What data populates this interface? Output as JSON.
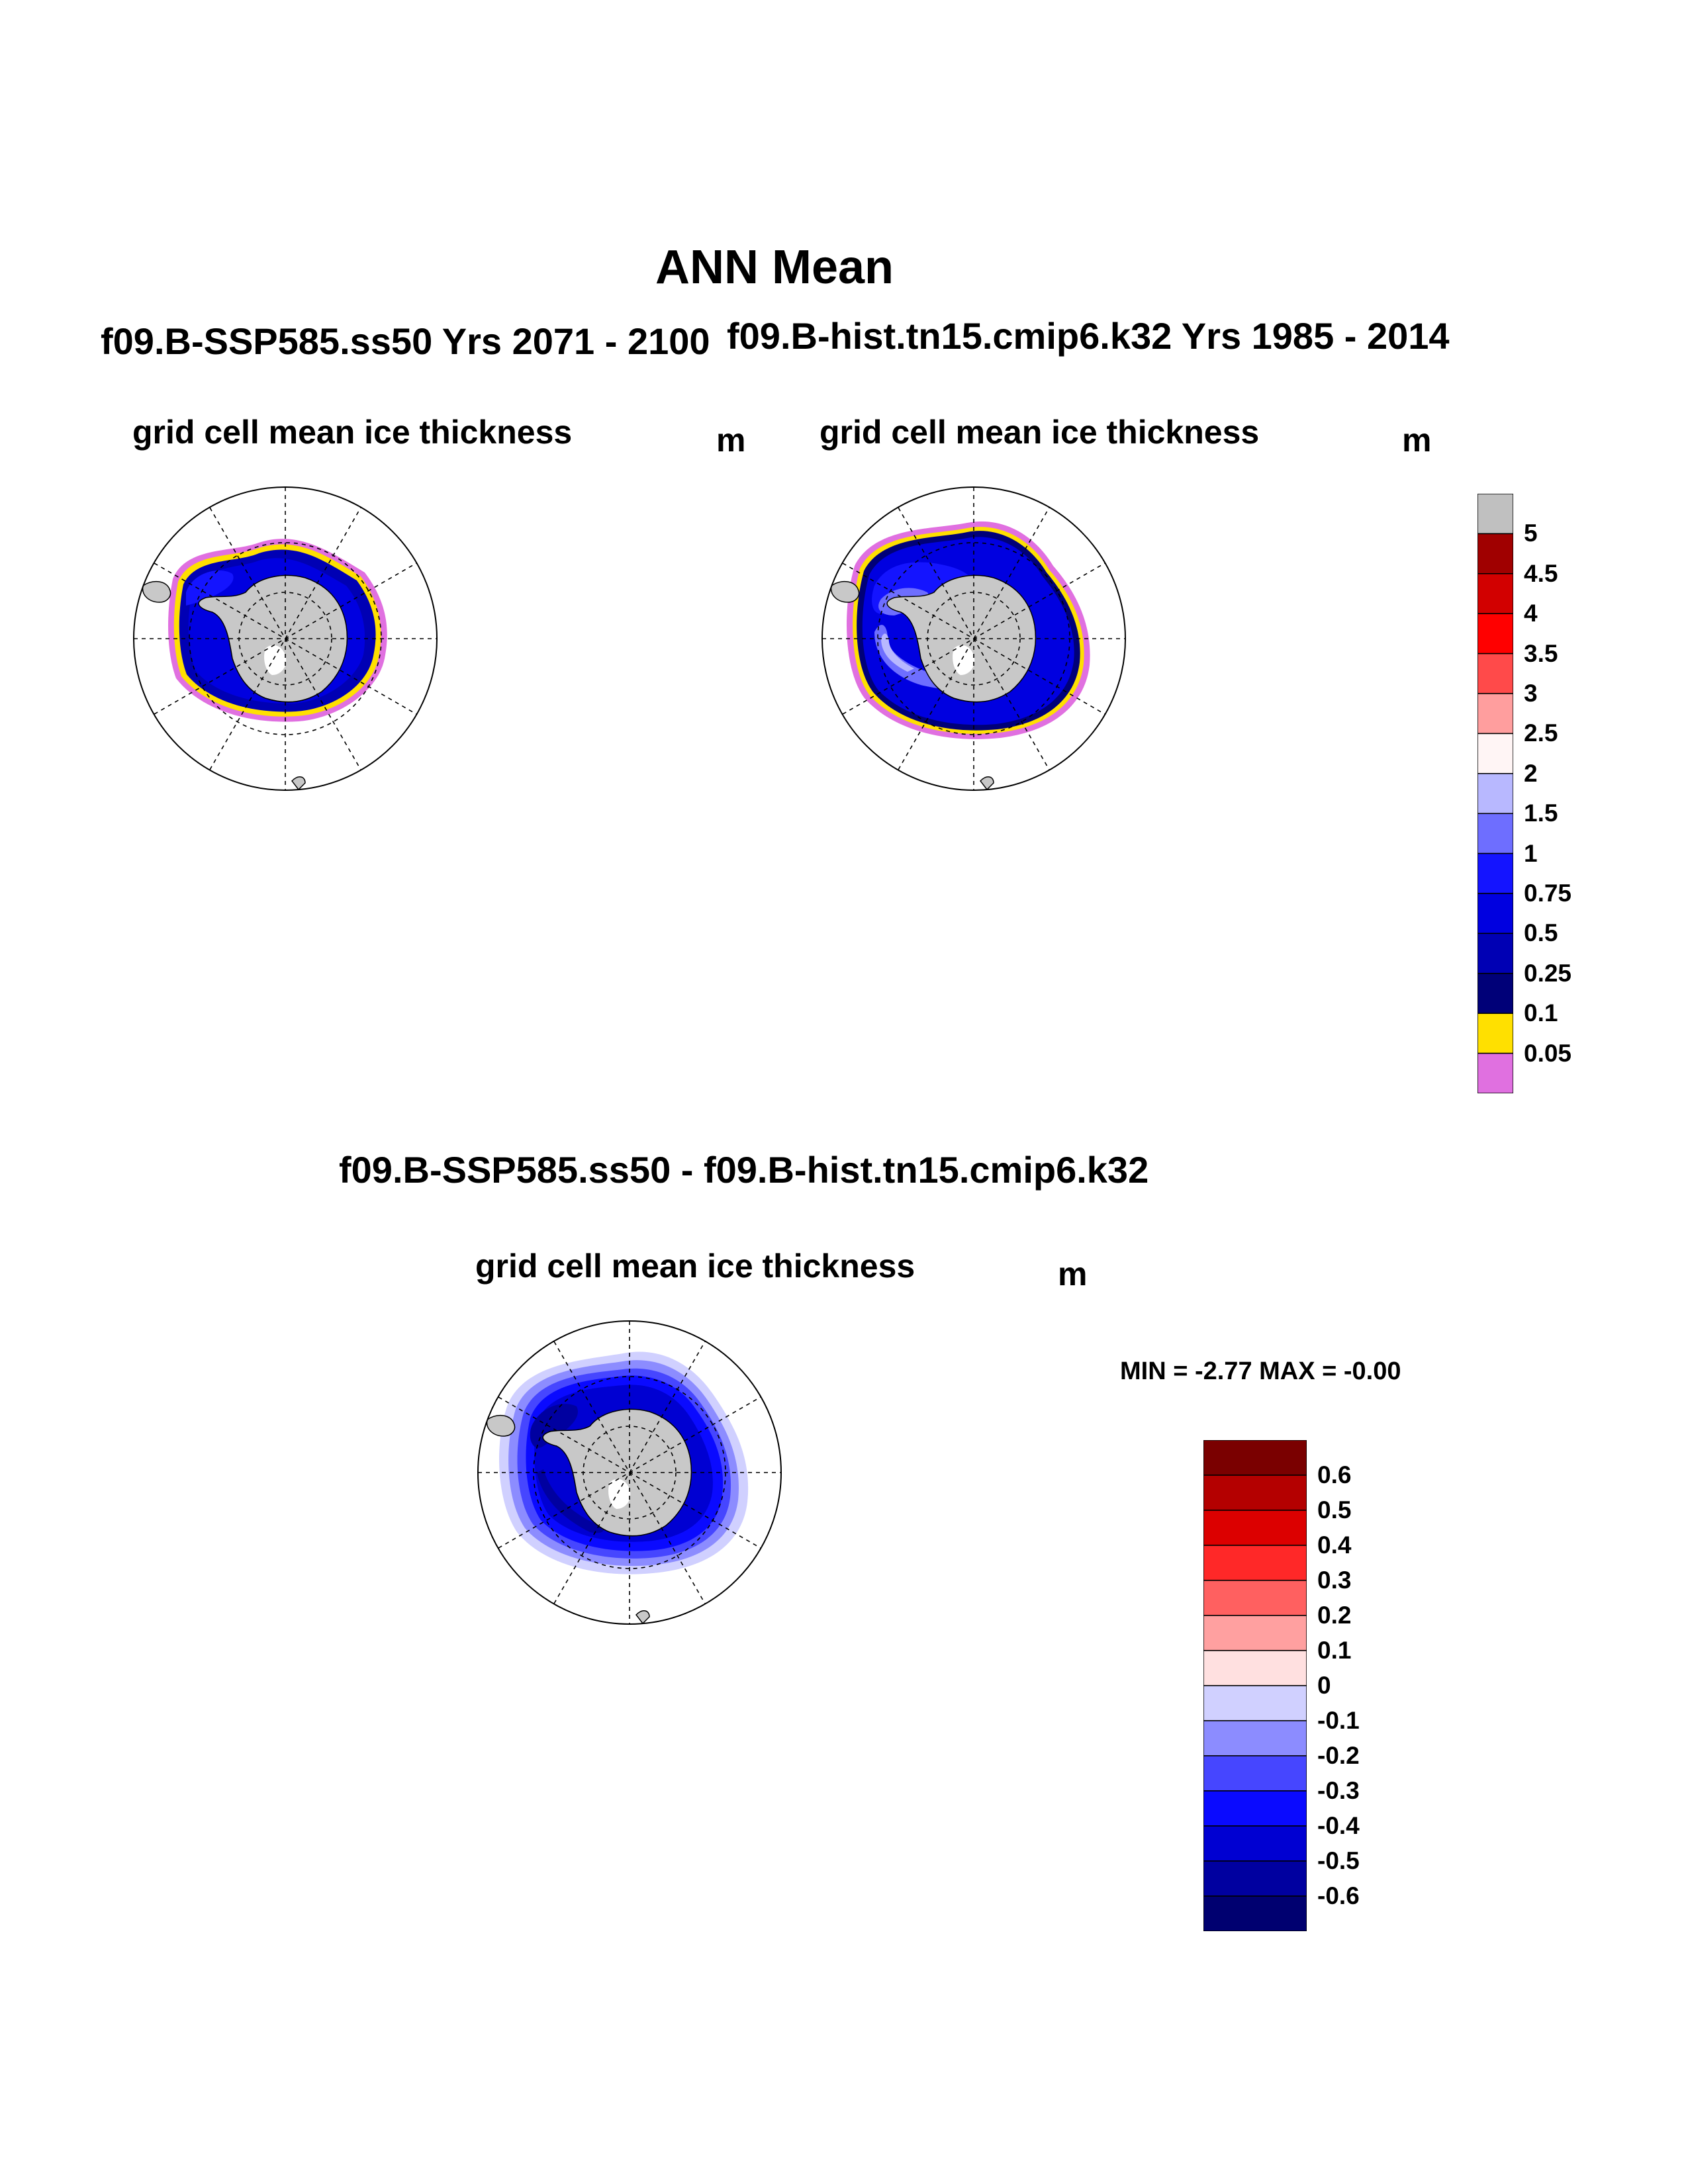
{
  "figure": {
    "main_title": "ANN Mean"
  },
  "panels": [
    {
      "id": "future",
      "run_title": "f09.B-SSP585.ss50  Yrs 2071 - 2100",
      "var_title": "grid cell mean ice thickness",
      "units": "m"
    },
    {
      "id": "historical",
      "run_title": "f09.B-hist.tn15.cmip6.k32  Yrs 1985 - 2014",
      "var_title": "grid cell mean ice thickness",
      "units": "m"
    },
    {
      "id": "difference",
      "run_title": "f09.B-SSP585.ss50 - f09.B-hist.tn15.cmip6.k32",
      "var_title": "grid cell mean ice thickness",
      "units": "m",
      "stats": "MIN =  -2.77 MAX =  -0.00"
    }
  ],
  "colorbars": {
    "thickness": {
      "labels": [
        "5",
        "4.5",
        "4",
        "3.5",
        "3",
        "2.5",
        "2",
        "1.5",
        "1",
        "0.75",
        "0.5",
        "0.25",
        "0.1",
        "0.05"
      ],
      "colors": [
        "#c0c0c0",
        "#a00000",
        "#d20000",
        "#ff0000",
        "#ff4a4a",
        "#ff9e9e",
        "#fff5f5",
        "#b8b8ff",
        "#6e6eff",
        "#1414ff",
        "#0000e0",
        "#0000b4",
        "#000078",
        "#ffe000",
        "#e070e0"
      ]
    },
    "difference": {
      "labels": [
        "0.6",
        "0.5",
        "0.4",
        "0.3",
        "0.2",
        "0.1",
        "0",
        "-0.1",
        "-0.2",
        "-0.3",
        "-0.4",
        "-0.5",
        "-0.6"
      ],
      "colors": [
        "#7a0000",
        "#b40000",
        "#dc0000",
        "#ff2828",
        "#ff6060",
        "#ffa0a0",
        "#ffe0e0",
        "#d0d0ff",
        "#8c8cff",
        "#4646ff",
        "#0a0aff",
        "#0000d2",
        "#0000a0",
        "#000070"
      ]
    }
  }
}
